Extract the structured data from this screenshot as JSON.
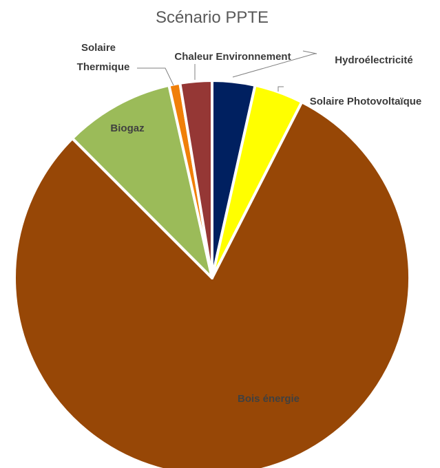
{
  "chart_data": {
    "type": "pie",
    "title": "Scénario PPTE",
    "slices": [
      {
        "label": "Hydroélectricité",
        "value": 3.5,
        "color": "#002060"
      },
      {
        "label": "Solaire Photovoltaïque",
        "value": 4.0,
        "color": "#ffff00"
      },
      {
        "label": "Bois énergie",
        "value": 80.0,
        "color": "#974706"
      },
      {
        "label": "Biogaz",
        "value": 9.0,
        "color": "#9bbb59"
      },
      {
        "label": "Solaire Thermique",
        "value": 0.9,
        "color": "#f07f09"
      },
      {
        "label": "Chaleur Environnement",
        "value": 2.6,
        "color": "#953735"
      }
    ],
    "start_angle_deg": 0,
    "direction": "clockwise",
    "legend": "none",
    "label_lines": {
      "solaire_thermique": [
        "Solaire",
        "Thermique"
      ]
    }
  }
}
